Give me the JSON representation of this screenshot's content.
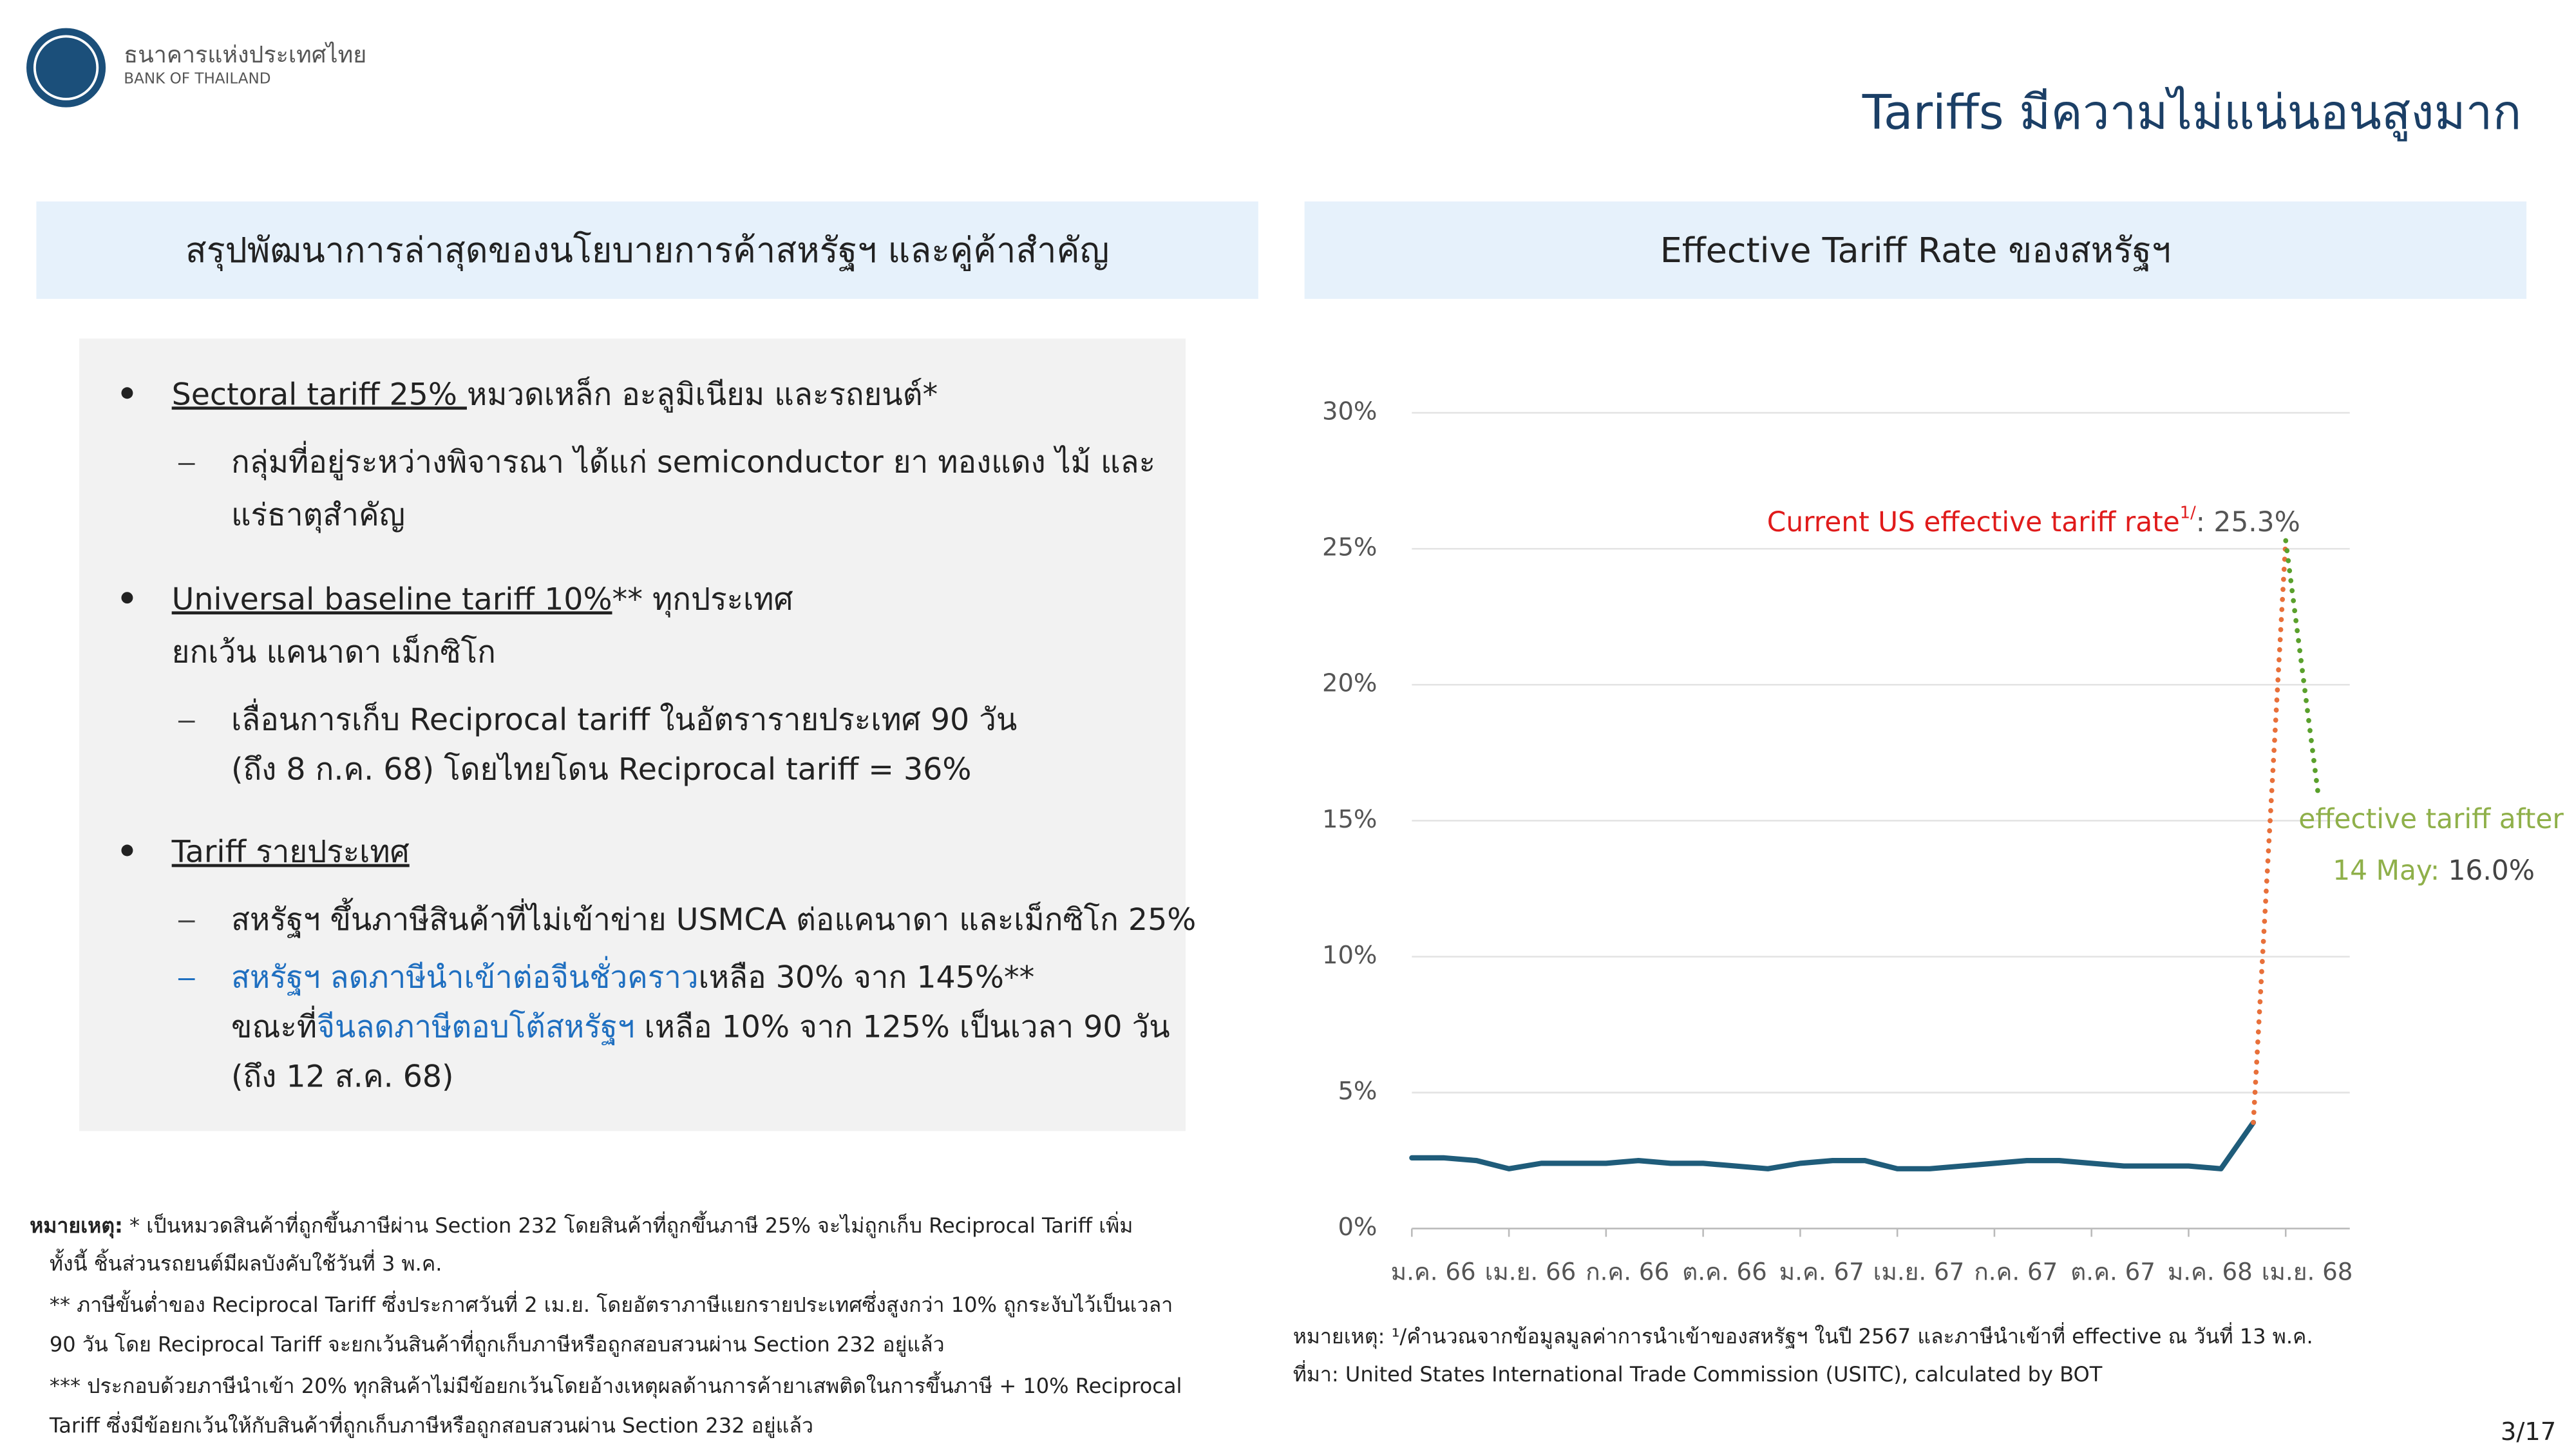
{
  "header": {
    "org_th": "ธนาคารแห่งประเทศไทย",
    "org_en": "BANK OF THAILAND",
    "title": "Tariffs มีความไม่แน่นอนสูงมาก"
  },
  "left_panel": {
    "title": "สรุปพัฒนาการล่าสุดของนโยบายการค้าสหรัฐฯ และคู่ค้าสำคัญ",
    "items": [
      {
        "level": 1,
        "lines": [
          [
            {
              "text": "Sectoral tariff 25% ",
              "underline": true
            },
            {
              "text": "หมวดเหล็ก อะลูมิเนียม และรถยนต์*"
            }
          ]
        ]
      },
      {
        "level": 2,
        "lines": [
          [
            {
              "text": "กลุ่มที่อยู่ระหว่างพิจารณา ได้แก่ semiconductor ยา ทองแดง ไม้ และ"
            }
          ],
          [
            {
              "text": "แร่ธาตุสำคัญ"
            }
          ]
        ]
      },
      {
        "level": 1,
        "lines": [
          [
            {
              "text": "Universal baseline tariff 10%",
              "underline": true
            },
            {
              "text": "** ทุกประเทศ"
            }
          ],
          [
            {
              "text": "ยกเว้น แคนาดา เม็กซิโก"
            }
          ]
        ]
      },
      {
        "level": 2,
        "lines": [
          [
            {
              "text": "เลื่อนการเก็บ Reciprocal tariff ในอัตรารายประเทศ 90 วัน"
            }
          ],
          [
            {
              "text": "(ถึง 8 ก.ค. 68) โดยไทยโดน Reciprocal tariff = 36%"
            }
          ]
        ]
      },
      {
        "level": 1,
        "lines": [
          [
            {
              "text": "Tariff รายประเทศ",
              "underline": true
            }
          ]
        ]
      },
      {
        "level": 2,
        "lines": [
          [
            {
              "text": "สหรัฐฯ ขึ้นภาษีสินค้าที่ไม่เข้าข่าย USMCA ต่อแคนาดา และเม็กซิโก 25%"
            }
          ]
        ]
      },
      {
        "level": 2,
        "lines": [
          [
            {
              "text": "สหรัฐฯ ลดภาษีนำเข้าต่อจีนชั่วคราว",
              "color": "#1f6fc0"
            },
            {
              "text": "เหลือ 30% จาก 145%**"
            }
          ],
          [
            {
              "text": "ขณะที่"
            },
            {
              "text": "จีนลดภาษีตอบโต้สหรัฐฯ",
              "color": "#1f6fc0"
            },
            {
              "text": " เหลือ 10% จาก 125% เป็นเวลา 90 วัน"
            }
          ],
          [
            {
              "text": "(ถึง 12 ส.ค. 68)"
            }
          ]
        ]
      }
    ],
    "notes": [
      [
        {
          "text": "หมายเหตุ:",
          "bold": true
        },
        {
          "text": " * เป็นหมวดสินค้าที่ถูกขึ้นภาษีผ่าน Section 232 โดยสินค้าที่ถูกขึ้นภาษี 25% จะไม่ถูกเก็บ Reciprocal Tariff เพิ่ม"
        }
      ],
      [
        {
          "text": "ทั้งนี้ ชิ้นส่วนรถยนต์มีผลบังคับใช้วันที่ 3 พ.ค."
        }
      ],
      [
        {
          "text": "** ภาษีขั้นต่ำของ Reciprocal Tariff ซึ่งประกาศวันที่ 2 เม.ย. โดยอัตราภาษีแยกรายประเทศซึ่งสูงกว่า 10% ถูกระงับไว้เป็นเวลา"
        }
      ],
      [
        {
          "text": "90 วัน โดย Reciprocal Tariff จะยกเว้นสินค้าที่ถูกเก็บภาษีหรือถูกสอบสวนผ่าน Section 232 อยู่แล้ว"
        }
      ],
      [
        {
          "text": "*** ประกอบด้วยภาษีนำเข้า 20% ทุกสินค้าไม่มีข้อยกเว้นโดยอ้างเหตุผลด้านการค้ายาเสพติดในการขึ้นภาษี + 10% Reciprocal"
        }
      ],
      [
        {
          "text": "Tariff ซึ่งมีข้อยกเว้นให้กับสินค้าที่ถูกเก็บภาษีหรือถูกสอบสวนผ่าน Section 232 อยู่แล้ว"
        }
      ]
    ]
  },
  "chart_data": {
    "type": "line",
    "title": "Effective Tariff Rate ของสหรัฐฯ",
    "categories": [
      "ม.ค. 66",
      null,
      null,
      "เม.ย. 66",
      null,
      null,
      "ก.ค. 66",
      null,
      null,
      "ต.ค. 66",
      null,
      null,
      "ม.ค. 67",
      null,
      null,
      "เม.ย. 67",
      null,
      null,
      "ก.ค. 67",
      null,
      null,
      "ต.ค. 67",
      null,
      null,
      "ม.ค. 68",
      null,
      null,
      "เม.ย. 68",
      null
    ],
    "series": [
      {
        "color": "#1f5c7a",
        "values": [
          2.6,
          2.6,
          2.5,
          2.2,
          2.4,
          2.4,
          2.4,
          2.5,
          2.4,
          2.4,
          2.3,
          2.2,
          2.4,
          2.5,
          2.5,
          2.2,
          2.2,
          2.3,
          2.4,
          2.5,
          2.5,
          2.4,
          2.3,
          2.3,
          2.3,
          2.2,
          3.9,
          null,
          null
        ],
        "dotted": false
      },
      {
        "color": "#e8703a",
        "values": [
          null,
          null,
          null,
          null,
          null,
          null,
          null,
          null,
          null,
          null,
          null,
          null,
          null,
          null,
          null,
          null,
          null,
          null,
          null,
          null,
          null,
          null,
          null,
          null,
          null,
          null,
          3.9,
          25.3,
          null
        ],
        "dotted": true
      },
      {
        "color": "#5aa02c",
        "values": [
          null,
          null,
          null,
          null,
          null,
          null,
          null,
          null,
          null,
          null,
          null,
          null,
          null,
          null,
          null,
          null,
          null,
          null,
          null,
          null,
          null,
          null,
          null,
          null,
          null,
          null,
          null,
          25.3,
          16.0
        ],
        "dotted": true
      }
    ],
    "ylim": [
      0,
      30
    ],
    "yticks": [
      {
        "value": 0,
        "label": "0%"
      },
      {
        "value": 5,
        "label": "5%"
      },
      {
        "value": 10,
        "label": "10%"
      },
      {
        "value": 15,
        "label": "15%"
      },
      {
        "value": 20,
        "label": "20%"
      },
      {
        "value": 25,
        "label": "25%"
      },
      {
        "value": 30,
        "label": "30%"
      }
    ],
    "grid": true,
    "annotations": [
      {
        "text": "Current US effective tariff rate",
        "sup": "1/",
        "value_text": ": 25.3%"
      },
      {
        "text": "effective tariff after",
        "line2": "14 May:",
        "value_text": " 16.0%"
      }
    ],
    "notes": [
      "หมายเหตุ: ¹/คำนวณจากข้อมูลมูลค่าการนำเข้าของสหรัฐฯ ในปี 2567 และภาษีนำเข้าที่ effective ณ วันที่ 13 พ.ค.",
      "ที่มา: United States International Trade Commission (USITC), calculated by BOT"
    ]
  },
  "page_number": "3/17"
}
